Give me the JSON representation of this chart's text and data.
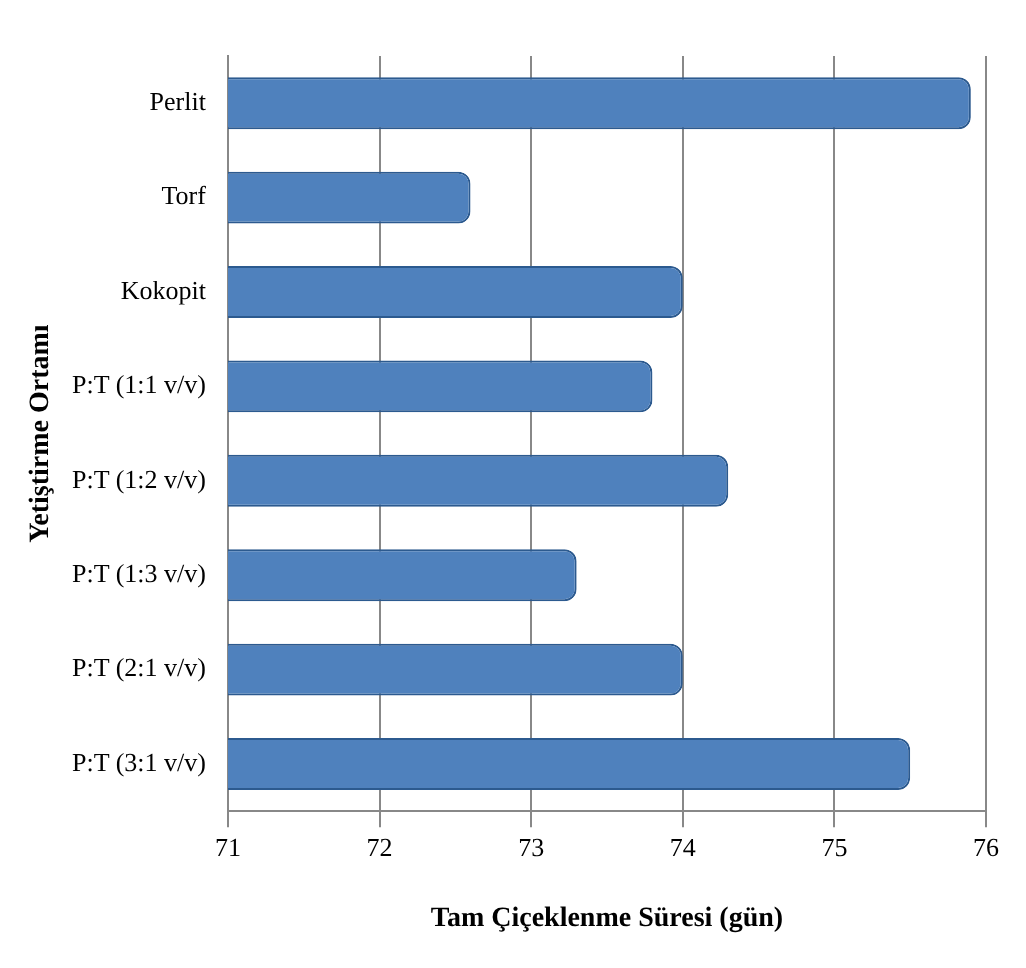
{
  "chart_data": {
    "type": "bar",
    "orientation": "horizontal",
    "xlabel": "Tam Çiçeklenme Süresi (gün)",
    "ylabel": "Yetiştirme Ortamı",
    "categories": [
      "Perlit",
      "Torf",
      "Kokopit",
      "P:T (1:1 v/v)",
      "P:T (1:2 v/v)",
      "P:T (1:3 v/v)",
      "P:T (2:1 v/v)",
      "P:T (3:1 v/v)"
    ],
    "values": [
      75.9,
      72.6,
      74.0,
      73.8,
      74.3,
      73.3,
      74.0,
      75.5
    ],
    "color": "#4f81bd",
    "xlim": [
      71,
      76
    ],
    "xticks": [
      71,
      72,
      73,
      74,
      75,
      76
    ],
    "grid": "x",
    "legend": false
  }
}
